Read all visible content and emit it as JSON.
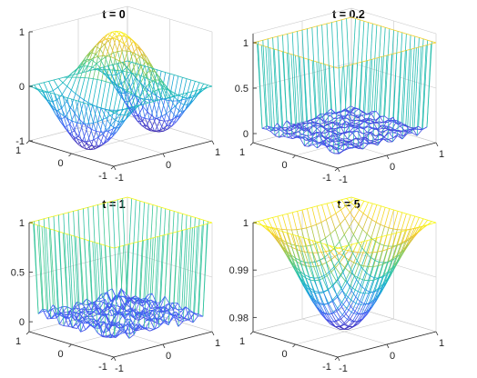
{
  "chart_data": [
    {
      "type": "mesh",
      "title": "t = 0",
      "x_ticks": [
        "-1",
        "0",
        "1"
      ],
      "y_ticks": [
        "-1",
        "0",
        "1"
      ],
      "z_ticks": [
        "-1",
        "0",
        "1"
      ],
      "zlim": [
        -1,
        1
      ],
      "x_range": [
        -1,
        1
      ],
      "y_range": [
        -1,
        1
      ],
      "grid": true,
      "colormap": "parula",
      "surface": "sin(pi*x)*sin(pi*y)-like oscillation with amplitude 1, values from -1 to 1"
    },
    {
      "type": "mesh",
      "title": "t = 0.2",
      "x_ticks": [
        "-1",
        "0",
        "1"
      ],
      "y_ticks": [
        "-1",
        "0",
        "1"
      ],
      "z_ticks": [
        "0",
        "0.5",
        "1"
      ],
      "zlim": [
        -0.1,
        1.1
      ],
      "x_range": [
        -1,
        1
      ],
      "y_range": [
        -1,
        1
      ],
      "grid": true,
      "colormap": "parula",
      "surface": "boundary values 1, interior near 0 with small oscillations"
    },
    {
      "type": "mesh",
      "title": "t = 1",
      "x_ticks": [
        "-1",
        "0",
        "1"
      ],
      "y_ticks": [
        "-1",
        "0",
        "1"
      ],
      "z_ticks": [
        "0",
        "0.5",
        "1"
      ],
      "zlim": [
        -0.1,
        1.0
      ],
      "x_range": [
        -1,
        1
      ],
      "y_range": [
        -1,
        1
      ],
      "grid": true,
      "colormap": "parula",
      "surface": "boundary values 1, interior near 0 with jagged oscillations"
    },
    {
      "type": "mesh",
      "title": "t = 5",
      "x_ticks": [
        "-1",
        "0",
        "1"
      ],
      "y_ticks": [
        "-1",
        "0",
        "1"
      ],
      "z_ticks": [
        "0.98",
        "0.99",
        "1"
      ],
      "zlim": [
        0.977,
        1.0
      ],
      "x_range": [
        -1,
        1
      ],
      "y_range": [
        -1,
        1
      ],
      "grid": true,
      "colormap": "parula",
      "surface": "smooth bowl: 1 at boundary, minimum about 0.977 at center"
    }
  ]
}
